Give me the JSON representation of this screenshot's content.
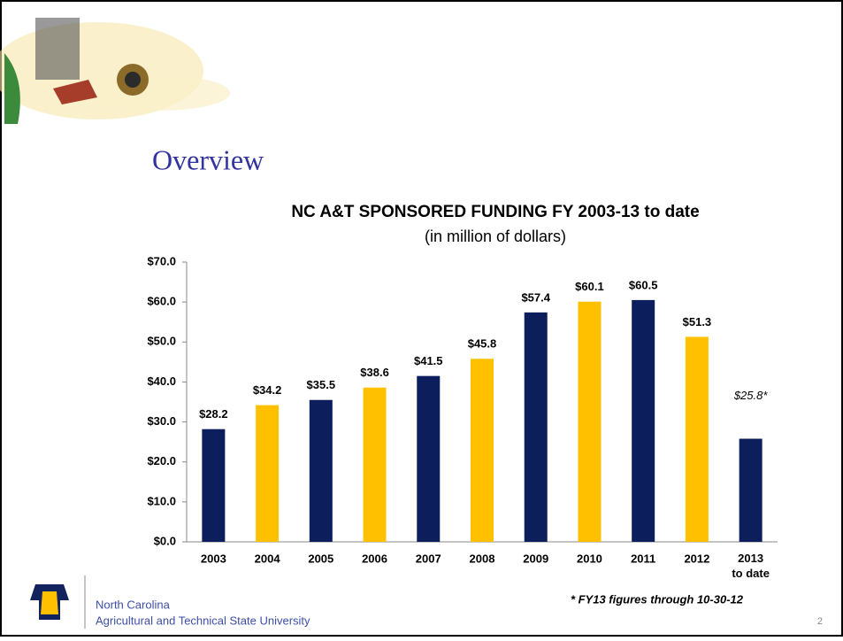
{
  "heading": "Overview",
  "chart_data": {
    "type": "bar",
    "title": "NC A&T SPONSORED FUNDING FY 2003-13 to date",
    "subtitle": "(in million of dollars)",
    "categories": [
      "2003",
      "2004",
      "2005",
      "2006",
      "2007",
      "2008",
      "2009",
      "2010",
      "2011",
      "2012",
      "2013\nto date"
    ],
    "values": [
      28.2,
      34.2,
      35.5,
      38.6,
      41.5,
      45.8,
      57.4,
      60.1,
      60.5,
      51.3,
      25.8
    ],
    "value_labels": [
      "$28.2",
      "$34.2",
      "$35.5",
      "$38.6",
      "$41.5",
      "$45.8",
      "$57.4",
      "$60.1",
      "$60.5",
      "$51.3",
      "$25.8*"
    ],
    "colors": [
      "#0c1e5b",
      "#ffc000",
      "#0c1e5b",
      "#ffc000",
      "#0c1e5b",
      "#ffc000",
      "#0c1e5b",
      "#ffc000",
      "#0c1e5b",
      "#ffc000",
      "#0c1e5b"
    ],
    "ylim": [
      0,
      70
    ],
    "yticks": [
      {
        "value": 0,
        "label": "$0.0"
      },
      {
        "value": 10,
        "label": "$10.0"
      },
      {
        "value": 20,
        "label": "$20.0"
      },
      {
        "value": 30,
        "label": "$30.0"
      },
      {
        "value": 40,
        "label": "$40.0"
      },
      {
        "value": 50,
        "label": "$50.0"
      },
      {
        "value": 60,
        "label": "$60.0"
      },
      {
        "value": 70,
        "label": "$70.0"
      }
    ],
    "grid": false,
    "note": "* FY13 figures through 10-30-12"
  },
  "footer": {
    "line1": "North Carolina",
    "line2": "Agricultural and Technical State University",
    "page_number": "2"
  }
}
